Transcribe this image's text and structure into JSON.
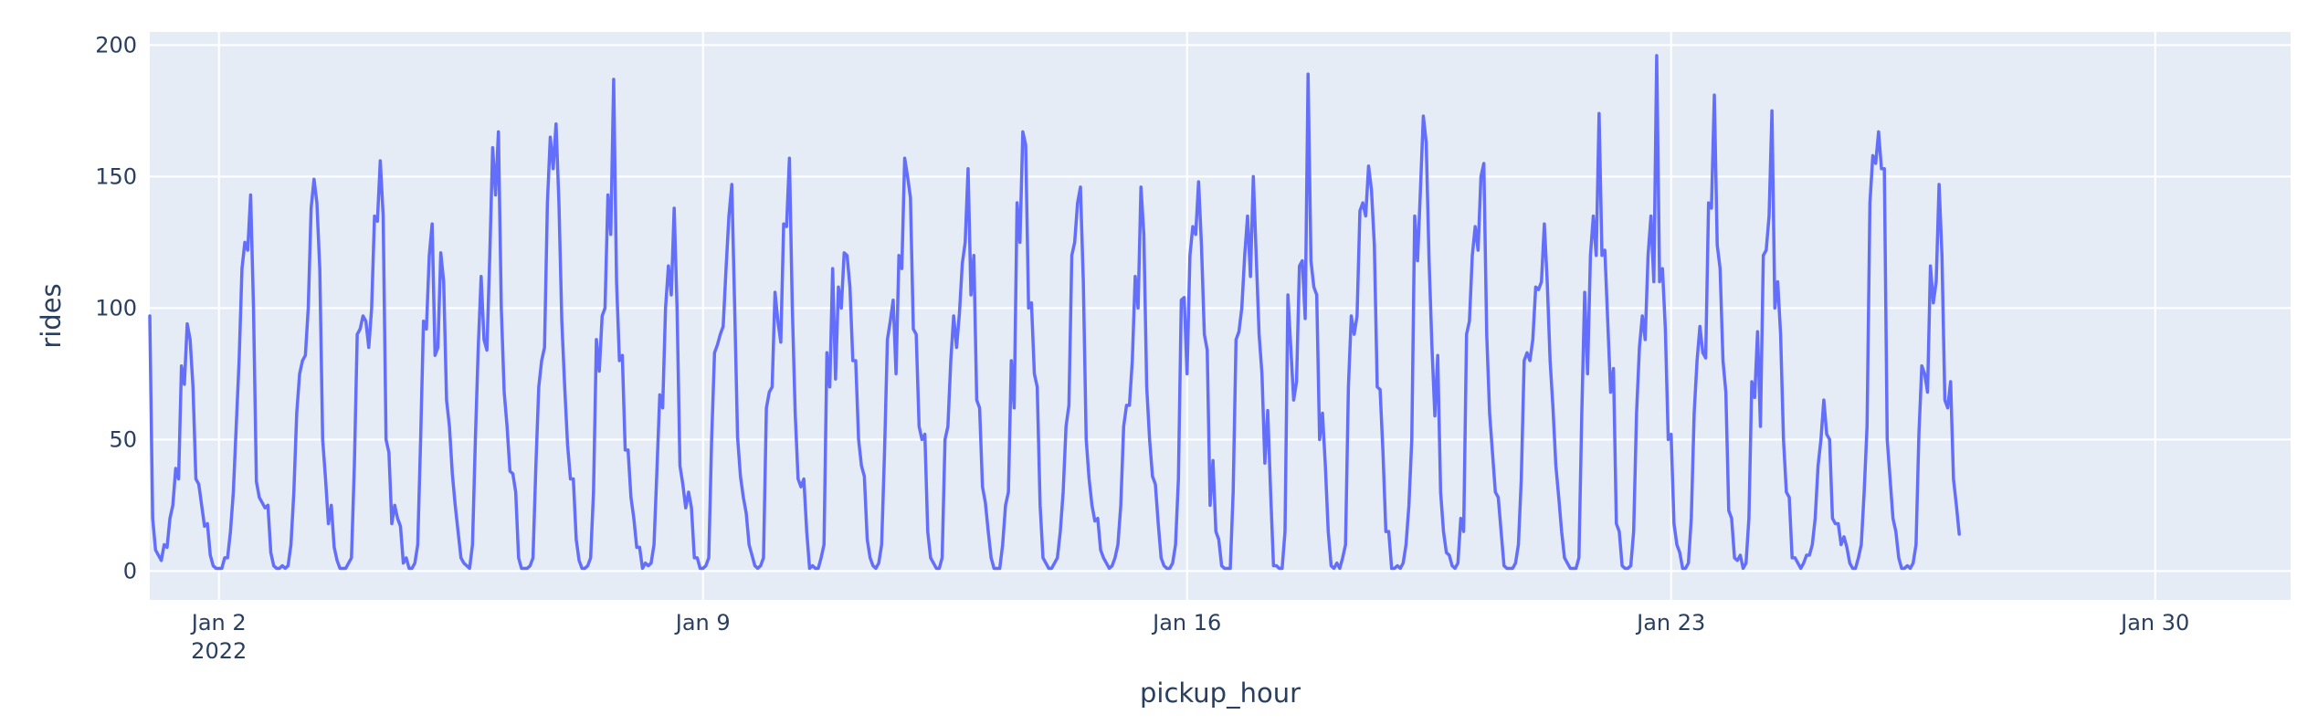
{
  "chart_data": {
    "type": "line",
    "xlabel": "pickup_hour",
    "ylabel": "rides",
    "ylim": [
      -11,
      205
    ],
    "xlim": [
      "2022-01-01 00:00",
      "2022-01-31 23:00"
    ],
    "yticks": [
      0,
      50,
      100,
      150,
      200
    ],
    "xticks": [
      {
        "date": "2022-01-02",
        "label": "Jan 2",
        "sublabel": "2022"
      },
      {
        "date": "2022-01-09",
        "label": "Jan 9",
        "sublabel": ""
      },
      {
        "date": "2022-01-16",
        "label": "Jan 16",
        "sublabel": ""
      },
      {
        "date": "2022-01-23",
        "label": "Jan 23",
        "sublabel": ""
      },
      {
        "date": "2022-01-30",
        "label": "Jan 30",
        "sublabel": ""
      }
    ],
    "grid": true,
    "colors": {
      "line": "#636efa",
      "plot_bg": "#e5ecf6",
      "grid": "#ffffff",
      "text": "#2a3f5f"
    },
    "series": [
      {
        "x_start": "2022-01-01 00:00",
        "x_step": "1 hour",
        "values": [
          97,
          20,
          8,
          6,
          4,
          10,
          9,
          20,
          25,
          39,
          35,
          78,
          71,
          94,
          88,
          70,
          35,
          33,
          25,
          17,
          18,
          6,
          2,
          1,
          1,
          1,
          5,
          5,
          15,
          30,
          55,
          80,
          115,
          125,
          122,
          143,
          100,
          34,
          28,
          26,
          24,
          25,
          7,
          2,
          1,
          1,
          2,
          1,
          2,
          10,
          30,
          60,
          75,
          80,
          82,
          100,
          138,
          149,
          140,
          115,
          50,
          35,
          18,
          25,
          9,
          4,
          1,
          1,
          1,
          3,
          5,
          40,
          90,
          92,
          97,
          95,
          85,
          100,
          135,
          133,
          156,
          135,
          50,
          45,
          18,
          25,
          20,
          17,
          3,
          5,
          1,
          1,
          3,
          10,
          50,
          95,
          92,
          120,
          132,
          82,
          85,
          121,
          110,
          65,
          55,
          37,
          25,
          15,
          5,
          3,
          2,
          1,
          10,
          50,
          85,
          112,
          88,
          84,
          120,
          161,
          143,
          167,
          100,
          68,
          55,
          38,
          37,
          30,
          5,
          1,
          1,
          1,
          2,
          5,
          40,
          70,
          80,
          85,
          140,
          165,
          153,
          170,
          140,
          95,
          70,
          48,
          35,
          35,
          12,
          4,
          1,
          1,
          2,
          5,
          30,
          88,
          76,
          97,
          100,
          143,
          128,
          187,
          110,
          80,
          82,
          46,
          46,
          28,
          20,
          9,
          9,
          1,
          3,
          2,
          3,
          10,
          38,
          67,
          62,
          100,
          116,
          105,
          138,
          100,
          40,
          33,
          24,
          30,
          24,
          5,
          5,
          1,
          1,
          2,
          5,
          50,
          83,
          86,
          90,
          93,
          115,
          135,
          147,
          100,
          51,
          36,
          28,
          22,
          10,
          6,
          2,
          1,
          2,
          5,
          62,
          68,
          70,
          106,
          95,
          87,
          132,
          131,
          157,
          100,
          60,
          35,
          32,
          35,
          15,
          1,
          2,
          1,
          1,
          5,
          10,
          83,
          70,
          115,
          73,
          108,
          100,
          121,
          120,
          108,
          80,
          80,
          50,
          40,
          36,
          12,
          5,
          2,
          1,
          3,
          10,
          45,
          88,
          95,
          103,
          75,
          120,
          115,
          157,
          150,
          142,
          92,
          90,
          55,
          50,
          52,
          15,
          5,
          3,
          1,
          1,
          5,
          50,
          55,
          80,
          97,
          85,
          98,
          117,
          125,
          153,
          105,
          120,
          65,
          62,
          32,
          26,
          15,
          5,
          1,
          1,
          1,
          10,
          25,
          30,
          80,
          62,
          140,
          125,
          167,
          162,
          100,
          102,
          75,
          70,
          25,
          5,
          3,
          1,
          1,
          3,
          5,
          15,
          30,
          55,
          63,
          120,
          125,
          140,
          146,
          110,
          50,
          35,
          25,
          19,
          20,
          8,
          5,
          3,
          1,
          2,
          5,
          10,
          25,
          55,
          63,
          63,
          80,
          112,
          100,
          146,
          128,
          70,
          50,
          36,
          33,
          18,
          5,
          2,
          1,
          1,
          3,
          10,
          35,
          103,
          104,
          75,
          120,
          131,
          128,
          148,
          124,
          90,
          84,
          25,
          42,
          15,
          12,
          2,
          1,
          1,
          1,
          30,
          88,
          91,
          100,
          120,
          135,
          112,
          150,
          120,
          90,
          75,
          41,
          61,
          30,
          2,
          2,
          1,
          1,
          15,
          105,
          85,
          65,
          72,
          116,
          118,
          96,
          189,
          118,
          108,
          105,
          50,
          60,
          40,
          15,
          2,
          1,
          3,
          1,
          5,
          10,
          70,
          97,
          90,
          97,
          137,
          140,
          135,
          154,
          145,
          124,
          70,
          69,
          45,
          15,
          15,
          1,
          1,
          2,
          1,
          3,
          10,
          25,
          50,
          135,
          118,
          145,
          173,
          163,
          118,
          85,
          59,
          82,
          30,
          15,
          7,
          6,
          2,
          1,
          3,
          20,
          15,
          90,
          95,
          120,
          131,
          122,
          150,
          155,
          90,
          60,
          45,
          30,
          28,
          15,
          2,
          1,
          1,
          1,
          3,
          10,
          35,
          80,
          83,
          80,
          88,
          108,
          107,
          110,
          132,
          110,
          80,
          62,
          40,
          28,
          15,
          5,
          3,
          1,
          1,
          1,
          5,
          60,
          106,
          75,
          120,
          135,
          120,
          174,
          120,
          122,
          95,
          68,
          77,
          18,
          15,
          2,
          1,
          1,
          2,
          15,
          60,
          85,
          97,
          88,
          120,
          135,
          110,
          196,
          110,
          115,
          92,
          50,
          52,
          18,
          10,
          7,
          1,
          1,
          3,
          20,
          60,
          80,
          93,
          83,
          81,
          140,
          138,
          181,
          124,
          115,
          80,
          68,
          23,
          20,
          5,
          4,
          6,
          1,
          3,
          20,
          72,
          66,
          91,
          55,
          120,
          122,
          135,
          175,
          100,
          110,
          90,
          50,
          30,
          28,
          5,
          5,
          3,
          1,
          3,
          6,
          6,
          10,
          20,
          40,
          50,
          65,
          52,
          50,
          20,
          18,
          18,
          10,
          13,
          9,
          3,
          1,
          1,
          5,
          10,
          30,
          55,
          140,
          158,
          155,
          167,
          153,
          153,
          50,
          35,
          20,
          15,
          5,
          1,
          1,
          2,
          1,
          3,
          10,
          52,
          78,
          75,
          68,
          116,
          102,
          110,
          147,
          120,
          65,
          62,
          72,
          35,
          25,
          14
        ]
      }
    ]
  }
}
